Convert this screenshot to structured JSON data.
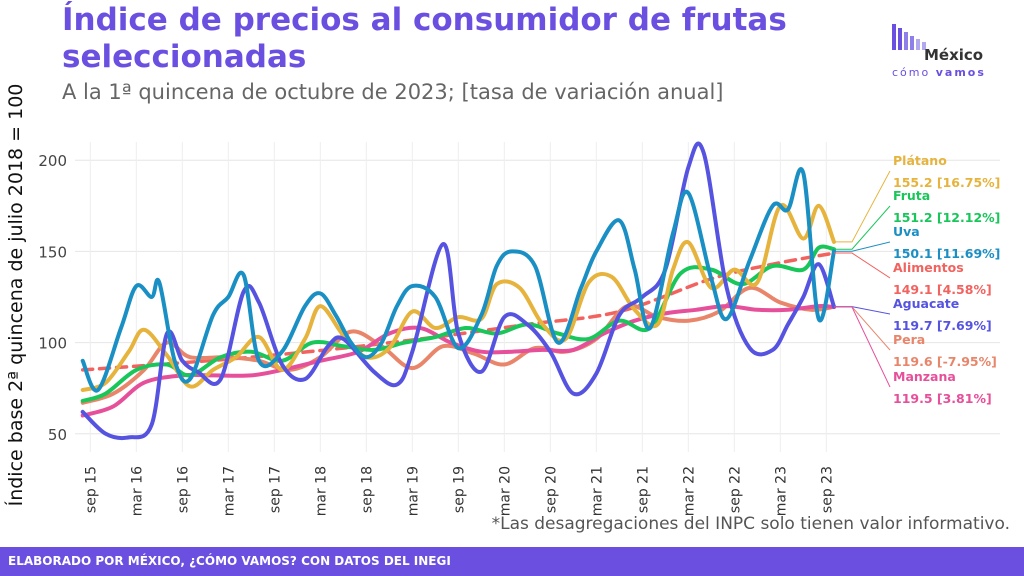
{
  "header": {
    "title": "Índice de precios al consumidor de frutas seleccionadas",
    "subtitle": "A la 1ª quincena de octubre de 2023; [tasa de variación anual]"
  },
  "logo": {
    "word1": "México",
    "word2a": "cómo",
    "word2b": "vamos",
    "bars-icon": "bar-pattern-icon"
  },
  "note": "*Las desagregaciones del INPC solo tienen valor informativo.",
  "footer": "ELABORADO POR MÉXICO, ¿CÓMO VAMOS? CON DATOS DEL INEGI",
  "chart_data": {
    "type": "line",
    "ylabel": "Índice base 2ª quincena de julio 2018 = 100",
    "xlabel": "",
    "ylim": [
      40,
      210
    ],
    "yticks": [
      50,
      100,
      150,
      200
    ],
    "xlim": [
      "2015-07",
      "2024-04"
    ],
    "xticks": [
      {
        "label": "sep 15",
        "date": "2015-09"
      },
      {
        "label": "mar 16",
        "date": "2016-03"
      },
      {
        "label": "sep 16",
        "date": "2016-09"
      },
      {
        "label": "mar 17",
        "date": "2017-03"
      },
      {
        "label": "sep 17",
        "date": "2017-09"
      },
      {
        "label": "mar 18",
        "date": "2018-03"
      },
      {
        "label": "sep 18",
        "date": "2018-09"
      },
      {
        "label": "mar 19",
        "date": "2019-03"
      },
      {
        "label": "sep 19",
        "date": "2019-09"
      },
      {
        "label": "mar 20",
        "date": "2020-03"
      },
      {
        "label": "sep 20",
        "date": "2020-09"
      },
      {
        "label": "mar 21",
        "date": "2021-03"
      },
      {
        "label": "sep 21",
        "date": "2021-09"
      },
      {
        "label": "mar 22",
        "date": "2022-03"
      },
      {
        "label": "sep 22",
        "date": "2022-09"
      },
      {
        "label": "mar 23",
        "date": "2023-03"
      },
      {
        "label": "sep 23",
        "date": "2023-09"
      }
    ],
    "grid": true,
    "series": [
      {
        "name": "Plátano",
        "value_label": "155.2 [16.75%]",
        "color": "#e6b33c",
        "dashed": false,
        "points": [
          [
            "2015-08",
            74
          ],
          [
            "2015-11",
            78
          ],
          [
            "2016-02",
            95
          ],
          [
            "2016-04",
            107
          ],
          [
            "2016-07",
            93
          ],
          [
            "2016-10",
            76
          ],
          [
            "2017-01",
            85
          ],
          [
            "2017-04",
            92
          ],
          [
            "2017-07",
            103
          ],
          [
            "2017-10",
            85
          ],
          [
            "2018-01",
            102
          ],
          [
            "2018-03",
            120
          ],
          [
            "2018-06",
            104
          ],
          [
            "2018-09",
            92
          ],
          [
            "2018-12",
            97
          ],
          [
            "2019-03",
            117
          ],
          [
            "2019-06",
            108
          ],
          [
            "2019-09",
            114
          ],
          [
            "2019-12",
            113
          ],
          [
            "2020-02",
            132
          ],
          [
            "2020-05",
            130
          ],
          [
            "2020-08",
            110
          ],
          [
            "2020-11",
            102
          ],
          [
            "2021-02",
            133
          ],
          [
            "2021-05",
            136
          ],
          [
            "2021-08",
            118
          ],
          [
            "2021-11",
            110
          ],
          [
            "2022-01",
            140
          ],
          [
            "2022-03",
            155
          ],
          [
            "2022-06",
            130
          ],
          [
            "2022-09",
            140
          ],
          [
            "2022-12",
            133
          ],
          [
            "2023-03",
            175
          ],
          [
            "2023-06",
            157
          ],
          [
            "2023-08",
            175
          ],
          [
            "2023-10",
            155.2
          ]
        ]
      },
      {
        "name": "Fruta",
        "value_label": "151.2 [12.12%]",
        "color": "#19c65a",
        "dashed": false,
        "points": [
          [
            "2015-08",
            68
          ],
          [
            "2015-11",
            72
          ],
          [
            "2016-03",
            85
          ],
          [
            "2016-07",
            88
          ],
          [
            "2016-10",
            82
          ],
          [
            "2017-02",
            92
          ],
          [
            "2017-06",
            95
          ],
          [
            "2017-10",
            90
          ],
          [
            "2018-02",
            100
          ],
          [
            "2018-06",
            98
          ],
          [
            "2018-10",
            96
          ],
          [
            "2019-02",
            100
          ],
          [
            "2019-06",
            103
          ],
          [
            "2019-10",
            108
          ],
          [
            "2020-02",
            105
          ],
          [
            "2020-06",
            110
          ],
          [
            "2020-10",
            105
          ],
          [
            "2021-02",
            102
          ],
          [
            "2021-06",
            112
          ],
          [
            "2021-10",
            108
          ],
          [
            "2022-02",
            138
          ],
          [
            "2022-06",
            140
          ],
          [
            "2022-10",
            132
          ],
          [
            "2023-02",
            142
          ],
          [
            "2023-06",
            140
          ],
          [
            "2023-08",
            152
          ],
          [
            "2023-10",
            151.2
          ]
        ]
      },
      {
        "name": "Uva",
        "value_label": "150.1 [11.69%]",
        "color": "#1a8fc4",
        "dashed": false,
        "points": [
          [
            "2015-08",
            90
          ],
          [
            "2015-10",
            74
          ],
          [
            "2016-01",
            108
          ],
          [
            "2016-03",
            131
          ],
          [
            "2016-05",
            125
          ],
          [
            "2016-06",
            133
          ],
          [
            "2016-08",
            90
          ],
          [
            "2016-10",
            80
          ],
          [
            "2017-01",
            115
          ],
          [
            "2017-03",
            125
          ],
          [
            "2017-05",
            137
          ],
          [
            "2017-07",
            90
          ],
          [
            "2017-10",
            95
          ],
          [
            "2018-01",
            120
          ],
          [
            "2018-03",
            127
          ],
          [
            "2018-05",
            115
          ],
          [
            "2018-07",
            100
          ],
          [
            "2018-09",
            92
          ],
          [
            "2018-11",
            100
          ],
          [
            "2019-01",
            120
          ],
          [
            "2019-03",
            131
          ],
          [
            "2019-06",
            125
          ],
          [
            "2019-09",
            97
          ],
          [
            "2019-12",
            115
          ],
          [
            "2020-02",
            142
          ],
          [
            "2020-04",
            150
          ],
          [
            "2020-07",
            142
          ],
          [
            "2020-10",
            100
          ],
          [
            "2021-01",
            130
          ],
          [
            "2021-03",
            150
          ],
          [
            "2021-06",
            167
          ],
          [
            "2021-08",
            140
          ],
          [
            "2021-10",
            108
          ],
          [
            "2022-01",
            160
          ],
          [
            "2022-03",
            182
          ],
          [
            "2022-06",
            135
          ],
          [
            "2022-08",
            113
          ],
          [
            "2022-11",
            145
          ],
          [
            "2023-02",
            175
          ],
          [
            "2023-04",
            173
          ],
          [
            "2023-06",
            193
          ],
          [
            "2023-08",
            113
          ],
          [
            "2023-10",
            150.1
          ]
        ]
      },
      {
        "name": "Alimentos",
        "value_label": "149.1 [4.58%]",
        "color": "#f2625f",
        "dashed": true,
        "points": [
          [
            "2015-08",
            85
          ],
          [
            "2016-06",
            88
          ],
          [
            "2017-06",
            92
          ],
          [
            "2018-06",
            97
          ],
          [
            "2019-06",
            103
          ],
          [
            "2020-06",
            110
          ],
          [
            "2021-06",
            117
          ],
          [
            "2022-06",
            135
          ],
          [
            "2023-02",
            143
          ],
          [
            "2023-10",
            149.1
          ]
        ]
      },
      {
        "name": "Aguacate",
        "value_label": "119.7 [7.69%]",
        "color": "#5553e0",
        "dashed": false,
        "points": [
          [
            "2015-08",
            62
          ],
          [
            "2015-11",
            50
          ],
          [
            "2016-02",
            48
          ],
          [
            "2016-05",
            55
          ],
          [
            "2016-07",
            105
          ],
          [
            "2016-09",
            90
          ],
          [
            "2016-11",
            84
          ],
          [
            "2017-02",
            80
          ],
          [
            "2017-05",
            128
          ],
          [
            "2017-07",
            122
          ],
          [
            "2017-10",
            88
          ],
          [
            "2018-01",
            80
          ],
          [
            "2018-04",
            98
          ],
          [
            "2018-06",
            102
          ],
          [
            "2018-10",
            84
          ],
          [
            "2019-01",
            77
          ],
          [
            "2019-03",
            95
          ],
          [
            "2019-07",
            154
          ],
          [
            "2019-09",
            105
          ],
          [
            "2019-12",
            84
          ],
          [
            "2020-03",
            114
          ],
          [
            "2020-06",
            110
          ],
          [
            "2020-09",
            95
          ],
          [
            "2020-12",
            72
          ],
          [
            "2021-03",
            83
          ],
          [
            "2021-06",
            115
          ],
          [
            "2021-09",
            125
          ],
          [
            "2021-12",
            140
          ],
          [
            "2022-03",
            196
          ],
          [
            "2022-05",
            204
          ],
          [
            "2022-08",
            130
          ],
          [
            "2022-11",
            97
          ],
          [
            "2023-02",
            96
          ],
          [
            "2023-04",
            110
          ],
          [
            "2023-06",
            125
          ],
          [
            "2023-08",
            143
          ],
          [
            "2023-10",
            119.7
          ]
        ]
      },
      {
        "name": "Pera",
        "value_label": "119.6 [-7.95%]",
        "color": "#e8856a",
        "dashed": false,
        "points": [
          [
            "2015-08",
            67
          ],
          [
            "2015-12",
            72
          ],
          [
            "2016-04",
            85
          ],
          [
            "2016-07",
            100
          ],
          [
            "2016-10",
            92
          ],
          [
            "2017-03",
            92
          ],
          [
            "2017-07",
            90
          ],
          [
            "2017-11",
            85
          ],
          [
            "2018-03",
            92
          ],
          [
            "2018-07",
            106
          ],
          [
            "2018-11",
            98
          ],
          [
            "2019-03",
            86
          ],
          [
            "2019-07",
            98
          ],
          [
            "2019-11",
            94
          ],
          [
            "2020-03",
            88
          ],
          [
            "2020-07",
            97
          ],
          [
            "2020-11",
            95
          ],
          [
            "2021-03",
            102
          ],
          [
            "2021-07",
            120
          ],
          [
            "2021-11",
            114
          ],
          [
            "2022-03",
            112
          ],
          [
            "2022-07",
            117
          ],
          [
            "2022-11",
            130
          ],
          [
            "2023-03",
            122
          ],
          [
            "2023-07",
            118
          ],
          [
            "2023-10",
            119.6
          ]
        ]
      },
      {
        "name": "Manzana",
        "value_label": "119.5 [3.81%]",
        "color": "#e64f9a",
        "dashed": false,
        "points": [
          [
            "2015-08",
            60
          ],
          [
            "2015-12",
            65
          ],
          [
            "2016-04",
            78
          ],
          [
            "2016-09",
            82
          ],
          [
            "2017-01",
            82
          ],
          [
            "2017-06",
            82
          ],
          [
            "2017-10",
            85
          ],
          [
            "2018-03",
            90
          ],
          [
            "2018-08",
            95
          ],
          [
            "2018-12",
            105
          ],
          [
            "2019-04",
            108
          ],
          [
            "2019-08",
            100
          ],
          [
            "2019-12",
            95
          ],
          [
            "2020-04",
            95
          ],
          [
            "2020-08",
            96
          ],
          [
            "2020-12",
            96
          ],
          [
            "2021-04",
            105
          ],
          [
            "2021-08",
            112
          ],
          [
            "2021-12",
            116
          ],
          [
            "2022-04",
            118
          ],
          [
            "2022-08",
            120
          ],
          [
            "2022-12",
            118
          ],
          [
            "2023-04",
            118
          ],
          [
            "2023-08",
            120
          ],
          [
            "2023-10",
            119.5
          ]
        ]
      }
    ]
  }
}
